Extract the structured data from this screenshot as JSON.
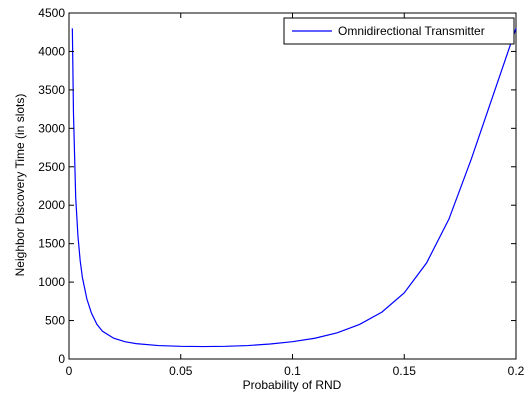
{
  "chart_data": {
    "type": "line",
    "title": "",
    "xlabel": "Probability of RND",
    "ylabel": "Neighbor Discovery Time (in slots)",
    "xlim": [
      0,
      0.2
    ],
    "ylim": [
      0,
      4500
    ],
    "xticks": [
      0,
      0.05,
      0.1,
      0.15,
      0.2
    ],
    "xtick_labels": [
      "0",
      "0.05",
      "0.1",
      "0.15",
      "0.2"
    ],
    "yticks": [
      0,
      500,
      1000,
      1500,
      2000,
      2500,
      3000,
      3500,
      4000,
      4500
    ],
    "ytick_labels": [
      "0",
      "500",
      "1000",
      "1500",
      "2000",
      "2500",
      "3000",
      "3500",
      "4000",
      "4500"
    ],
    "grid": false,
    "legend_position": "top-right",
    "series": [
      {
        "name": "Omnidirectional Transmitter",
        "color": "#0000ff",
        "x": [
          0.0015,
          0.002,
          0.003,
          0.004,
          0.005,
          0.006,
          0.008,
          0.01,
          0.0125,
          0.015,
          0.02,
          0.025,
          0.03,
          0.04,
          0.05,
          0.06,
          0.07,
          0.08,
          0.09,
          0.1,
          0.11,
          0.12,
          0.13,
          0.14,
          0.15,
          0.16,
          0.17,
          0.18,
          0.19,
          0.2
        ],
        "y": [
          4300,
          3200,
          2100,
          1600,
          1280,
          1060,
          780,
          600,
          450,
          360,
          270,
          225,
          200,
          175,
          165,
          162,
          165,
          175,
          195,
          225,
          270,
          340,
          450,
          610,
          860,
          1250,
          1820,
          2600,
          3450,
          4300
        ]
      }
    ]
  }
}
